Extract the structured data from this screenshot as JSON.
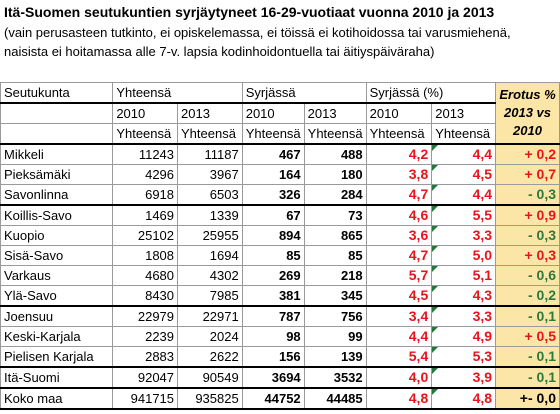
{
  "title": "Itä-Suomen seutukuntien syrjäytyneet 16-29-vuotiaat vuonna 2010 ja 2013",
  "subtitle_line1": "(vain perusasteen tutkinto, ei opiskelemassa, ei töissä ei kotihoidossa tai varusmiehenä,",
  "subtitle_line2": "naisista ei hoitamassa alle 7-v. lapsia kodinhoidontuella tai äitiyspäiväraha)",
  "header": {
    "seutukunta": "Seutukunta",
    "yhteensa": "Yhteensä",
    "syrjassa": "Syrjässä",
    "syrjassa_pct": "Syrjässä (%)",
    "erotus_line1": "Erotus %",
    "erotus_line2": "2013 vs",
    "erotus_line3": "2010",
    "y2010a": "2010",
    "y2013a": "2013",
    "y2010b": "2010",
    "y2013b": "2013",
    "y2010c": "2010",
    "y2013c": "2013",
    "sub_a": "Yhteensä",
    "sub_b": "Yhteensä",
    "sub_c": "Yhteensä",
    "sub_d": "Yhteensä",
    "sub_e": "Yhteensä",
    "sub_f": "Yhteensä"
  },
  "rows": [
    {
      "name": "Mikkeli",
      "t2010": "11243",
      "t2013": "11187",
      "s2010": "467",
      "s2013": "488",
      "p2010": "4,2",
      "p2013": "4,4",
      "diff": "+ 0,2",
      "sign": "pos"
    },
    {
      "name": "Pieksämäki",
      "t2010": "4296",
      "t2013": "3967",
      "s2010": "164",
      "s2013": "180",
      "p2010": "3,8",
      "p2013": "4,5",
      "diff": "+ 0,7",
      "sign": "pos"
    },
    {
      "name": "Savonlinna",
      "t2010": "6918",
      "t2013": "6503",
      "s2010": "326",
      "s2013": "284",
      "p2010": "4,7",
      "p2013": "4,4",
      "diff": "- 0,3",
      "sign": "neg"
    },
    {
      "name": "Koillis-Savo",
      "t2010": "1469",
      "t2013": "1339",
      "s2010": "67",
      "s2013": "73",
      "p2010": "4,6",
      "p2013": "5,5",
      "diff": "+ 0,9",
      "sign": "pos"
    },
    {
      "name": "Kuopio",
      "t2010": "25102",
      "t2013": "25955",
      "s2010": "894",
      "s2013": "865",
      "p2010": "3,6",
      "p2013": "3,3",
      "diff": "- 0,3",
      "sign": "neg"
    },
    {
      "name": "Sisä-Savo",
      "t2010": "1808",
      "t2013": "1694",
      "s2010": "85",
      "s2013": "85",
      "p2010": "4,7",
      "p2013": "5,0",
      "diff": "+ 0,3",
      "sign": "pos"
    },
    {
      "name": "Varkaus",
      "t2010": "4680",
      "t2013": "4302",
      "s2010": "269",
      "s2013": "218",
      "p2010": "5,7",
      "p2013": "5,1",
      "diff": "- 0,6",
      "sign": "neg"
    },
    {
      "name": "Ylä-Savo",
      "t2010": "8430",
      "t2013": "7985",
      "s2010": "381",
      "s2013": "345",
      "p2010": "4,5",
      "p2013": "4,3",
      "diff": "- 0,2",
      "sign": "neg"
    },
    {
      "name": "Joensuu",
      "t2010": "22979",
      "t2013": "22971",
      "s2010": "787",
      "s2013": "756",
      "p2010": "3,4",
      "p2013": "3,3",
      "diff": "- 0,1",
      "sign": "neg"
    },
    {
      "name": "Keski-Karjala",
      "t2010": "2239",
      "t2013": "2024",
      "s2010": "98",
      "s2013": "99",
      "p2010": "4,4",
      "p2013": "4,9",
      "diff": "+ 0,5",
      "sign": "pos"
    },
    {
      "name": "Pielisen Karjala",
      "t2010": "2883",
      "t2013": "2622",
      "s2010": "156",
      "s2013": "139",
      "p2010": "5,4",
      "p2013": "5,3",
      "diff": "- 0,1",
      "sign": "neg"
    },
    {
      "name": "Itä-Suomi",
      "t2010": "92047",
      "t2013": "90549",
      "s2010": "3694",
      "s2013": "3532",
      "p2010": "4,0",
      "p2013": "3,9",
      "diff": "- 0,1",
      "sign": "neg"
    },
    {
      "name": "Koko maa",
      "t2010": "941715",
      "t2013": "935825",
      "s2010": "44752",
      "s2013": "44485",
      "p2010": "4,8",
      "p2013": "4,8",
      "diff": "+- 0,0",
      "sign": "zero"
    }
  ]
}
